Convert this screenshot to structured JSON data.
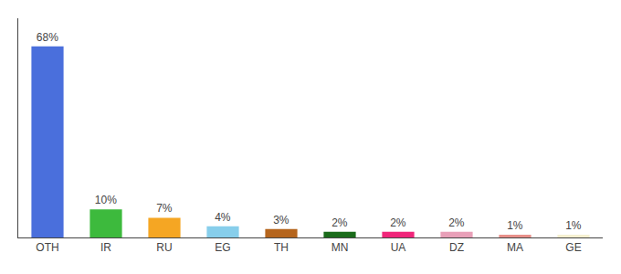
{
  "chart_data": {
    "type": "bar",
    "categories": [
      "OTH",
      "IR",
      "RU",
      "EG",
      "TH",
      "MN",
      "UA",
      "DZ",
      "MA",
      "GE"
    ],
    "values": [
      68,
      10,
      7,
      4,
      3,
      2,
      2,
      2,
      1,
      1
    ],
    "value_labels": [
      "68%",
      "10%",
      "7%",
      "4%",
      "3%",
      "2%",
      "2%",
      "2%",
      "1%",
      "1%"
    ],
    "colors": [
      "#4a6fdc",
      "#3dba3d",
      "#f5a623",
      "#87ceeb",
      "#b5651d",
      "#1a6b1a",
      "#f0257a",
      "#e8a0b8",
      "#e8908a",
      "#f5f0d0"
    ],
    "ylim": [
      0,
      78
    ],
    "grid": false,
    "data_labels": true,
    "tick_labels": "x"
  }
}
